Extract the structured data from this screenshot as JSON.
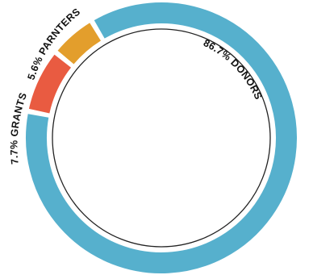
{
  "chart_data": {
    "type": "pie",
    "variant": "donut",
    "slices": [
      {
        "name": "DONORS",
        "value": 86.7,
        "label": "86.7% DONORS",
        "color": "#56b0cd"
      },
      {
        "name": "GRANTS",
        "value": 7.7,
        "label": "7.7% GRANTS",
        "color": "#e95b41"
      },
      {
        "name": "PARNTERS",
        "value": 5.6,
        "label": "5.6% PARNTERS",
        "color": "#e39e2c"
      }
    ],
    "inner_circle_outline": true,
    "legend": "none"
  }
}
